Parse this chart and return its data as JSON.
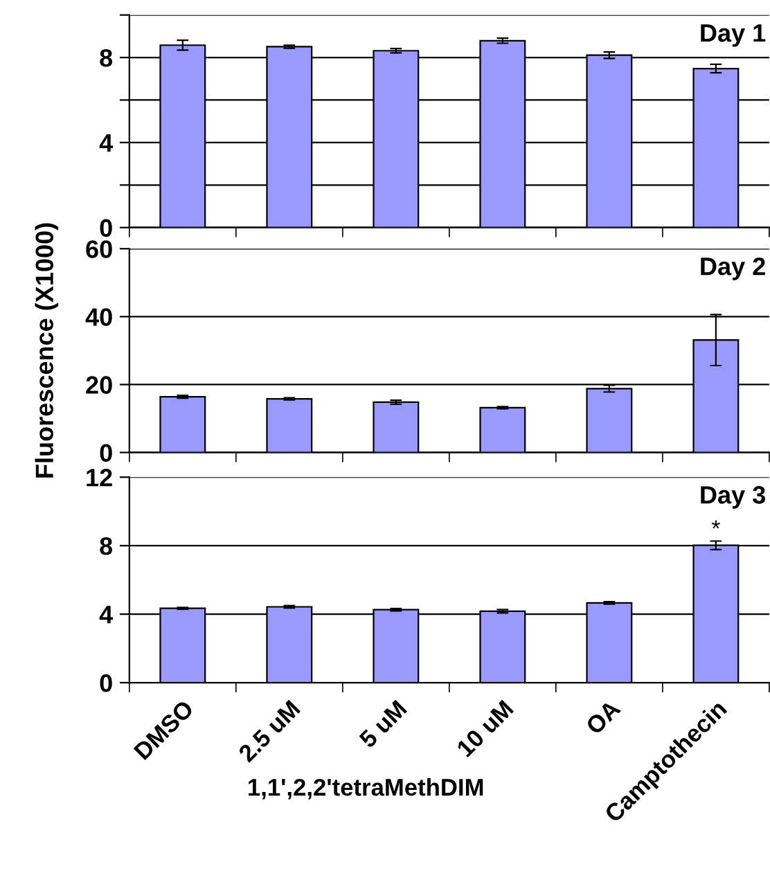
{
  "chart_data": [
    {
      "type": "bar",
      "title": "Day 1",
      "series": [
        {
          "color": "#9999ff",
          "values": [
            8.58,
            8.51,
            8.32,
            8.79,
            8.11,
            7.48
          ],
          "errors": [
            0.23,
            0.07,
            0.1,
            0.12,
            0.15,
            0.2
          ]
        }
      ],
      "ylim": [
        0,
        10
      ],
      "yticks": [
        0,
        {
          "value": 2,
          "label": null
        },
        4,
        {
          "value": 6,
          "label": null
        },
        8,
        {
          "value": 10,
          "label": null
        }
      ],
      "grid": "y",
      "tick_labels": "y"
    },
    {
      "type": "bar",
      "title": "Day 2",
      "ylabel": "Fluorescence (X1000)",
      "series": [
        {
          "color": "#9999ff",
          "values": [
            16.4,
            15.8,
            14.8,
            13.2,
            18.8,
            33.1
          ],
          "errors": [
            0.4,
            0.3,
            0.6,
            0.3,
            1.0,
            7.5
          ]
        }
      ],
      "ylim": [
        0,
        60
      ],
      "yticks": [
        0,
        20,
        40,
        60
      ],
      "grid": "y",
      "tick_labels": "y"
    },
    {
      "type": "bar",
      "title": "Day 3",
      "xlabel": "1,1',2,2'tetraMethDIM",
      "categories": [
        "DMSO",
        "2.5 uM",
        "5 uM",
        "10 uM",
        "OA",
        "Camptothecin"
      ],
      "series": [
        {
          "color": "#9999ff",
          "values": [
            4.34,
            4.43,
            4.26,
            4.17,
            4.66,
            8.02
          ],
          "errors": [
            0.05,
            0.07,
            0.07,
            0.1,
            0.07,
            0.25
          ]
        }
      ],
      "ylim": [
        0,
        12
      ],
      "yticks": [
        0,
        4,
        8,
        12
      ],
      "grid": "y",
      "annotations": [
        {
          "text": "*",
          "x": "Camptothecin",
          "y": 8.27
        }
      ]
    }
  ]
}
